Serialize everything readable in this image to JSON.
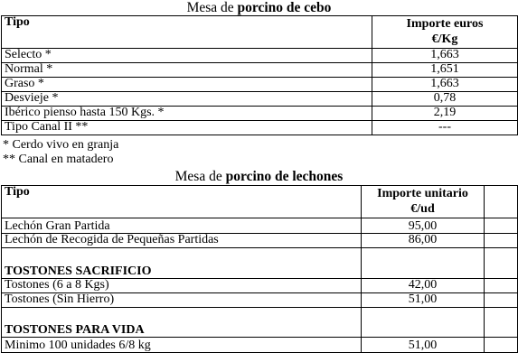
{
  "cebo": {
    "title_prefix": "Mesa de ",
    "title_bold": "porcino de cebo",
    "header_tipo": "Tipo",
    "header_importe_1": "Importe euros",
    "header_importe_2": "€/Kg",
    "rows": [
      {
        "tipo": "Selecto *",
        "valor": "1,663"
      },
      {
        "tipo": "Normal *",
        "valor": "1,651"
      },
      {
        "tipo": "Graso *",
        "valor": "1,663"
      },
      {
        "tipo": "Desvieje *",
        "valor": "0,78"
      },
      {
        "tipo": "Ibérico pienso hasta 150 Kgs. *",
        "valor": "2,19"
      },
      {
        "tipo": "Tipo Canal II **",
        "valor": "---"
      }
    ],
    "notes": [
      "* Cerdo vivo en granja",
      "** Canal en matadero"
    ]
  },
  "lechones": {
    "title_prefix": "Mesa de ",
    "title_bold": "porcino de lechones",
    "header_tipo": "Tipo",
    "header_importe_1": "Importe unitario",
    "header_importe_2": "€/ud",
    "rows": [
      {
        "tipo": "Lechón Gran Partida",
        "valor": "95,00"
      },
      {
        "tipo": "Lechón de Recogida de Pequeñas Partidas",
        "valor": "86,00"
      }
    ],
    "section_sacrificio": "TOSTONES SACRIFICIO",
    "sacrificio_rows": [
      {
        "tipo": "Tostones (6 a 8 Kgs)",
        "valor": "42,00"
      },
      {
        "tipo": "Tostones  (Sin Hierro)",
        "valor": "51,00"
      }
    ],
    "section_vida": "TOSTONES PARA VIDA",
    "vida_rows": [
      {
        "tipo": "Minimo 100 unidades 6/8 kg",
        "valor": "51,00"
      }
    ]
  }
}
